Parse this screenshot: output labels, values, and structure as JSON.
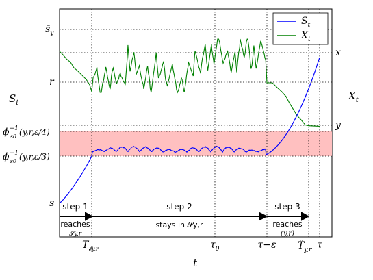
{
  "chart_data": {
    "type": "line",
    "xlabel": "t",
    "ylabel_left": "S",
    "ylabel_left_sub": "t",
    "ylabel_right": "X",
    "ylabel_right_sub": "t",
    "legend_position": "top-right",
    "grid": "dotted reference lines",
    "x_ticks": [
      {
        "key": "T_eps",
        "base": "T",
        "sub": "𝓔y,r"
      },
      {
        "key": "tau0",
        "base": "τ",
        "sub": "0"
      },
      {
        "key": "tau_minus_eps",
        "base": "τ−ε",
        "sub": ""
      },
      {
        "key": "T_tilde",
        "base": "T̃",
        "sub": "y,r"
      },
      {
        "key": "tau",
        "base": "τ",
        "sub": ""
      }
    ],
    "y_ticks_left": [
      {
        "key": "s_bar",
        "text": "s̄",
        "sub": "y"
      },
      {
        "key": "r",
        "text": "r",
        "sub": ""
      },
      {
        "key": "phi4",
        "text": "ϕ",
        "expr": "(y,r,ε/4)",
        "frac_num": "ε",
        "frac_den": "4"
      },
      {
        "key": "phi3",
        "text": "ϕ",
        "expr": "(y,r,ε/3)",
        "frac_num": "ε",
        "frac_den": "3"
      },
      {
        "key": "s",
        "text": "s",
        "sub": ""
      }
    ],
    "phi_superscript": "−1",
    "phi_subscript": "s0",
    "y_ticks_right": [
      {
        "key": "x",
        "text": "x"
      },
      {
        "key": "y",
        "text": "y"
      }
    ],
    "series": [
      {
        "name": "S",
        "name_sub": "t",
        "color": "#0000ff"
      },
      {
        "name": "X",
        "name_sub": "t",
        "color": "#008000"
      }
    ],
    "band": {
      "color": "#ffc0c0",
      "between": [
        "phi4",
        "phi3"
      ]
    },
    "steps": [
      {
        "label": "step 1",
        "caption": "reaches",
        "caption_sub": "𝓢y,r"
      },
      {
        "label": "step 2",
        "caption": "stays in 𝓢y,r",
        "caption_sub": ""
      },
      {
        "label": "step 3",
        "caption": "reaches",
        "caption_sub": "(y,r)"
      }
    ]
  }
}
